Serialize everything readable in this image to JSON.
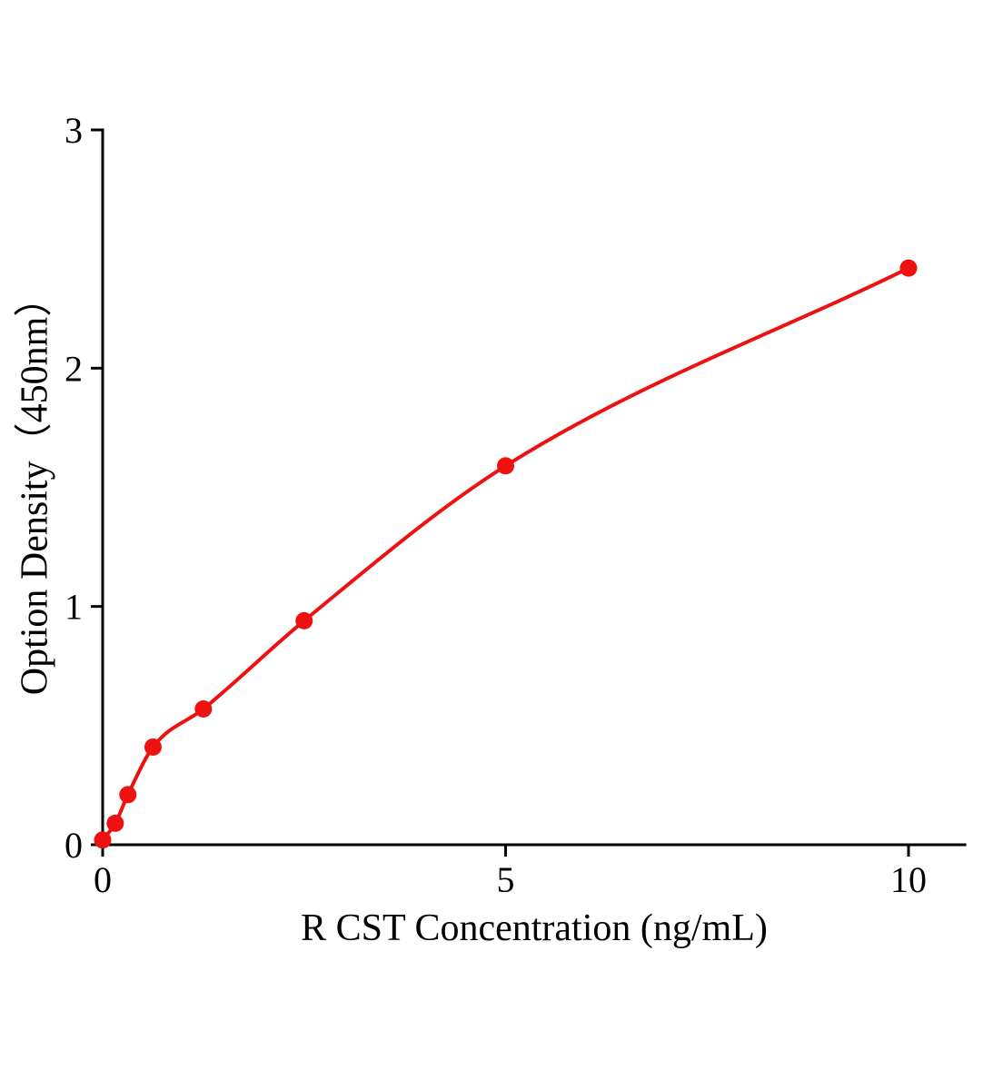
{
  "page": {
    "background": "#ffffff"
  },
  "chart_data": {
    "type": "scatter",
    "title": "",
    "xlabel": "R CST Concentration (ng/mL)",
    "ylabel": "Option Density（450nm）",
    "x": [
      0,
      0.156,
      0.313,
      0.625,
      1.25,
      2.5,
      5,
      10
    ],
    "y": [
      0.02,
      0.09,
      0.21,
      0.41,
      0.57,
      0.94,
      1.59,
      2.42
    ],
    "fit_line": true,
    "xlim": [
      0,
      10.7
    ],
    "ylim": [
      0,
      3
    ],
    "x_ticks": [
      0,
      5,
      10
    ],
    "x_tick_labels": [
      "0",
      "5",
      "10"
    ],
    "y_ticks": [
      0,
      1,
      2,
      3
    ],
    "y_tick_labels": [
      "0",
      "1",
      "2",
      "3"
    ],
    "grid": false,
    "legend": false,
    "point_color": "#ee1111",
    "line_color": "#ee1111",
    "axis_color": "#000000"
  }
}
